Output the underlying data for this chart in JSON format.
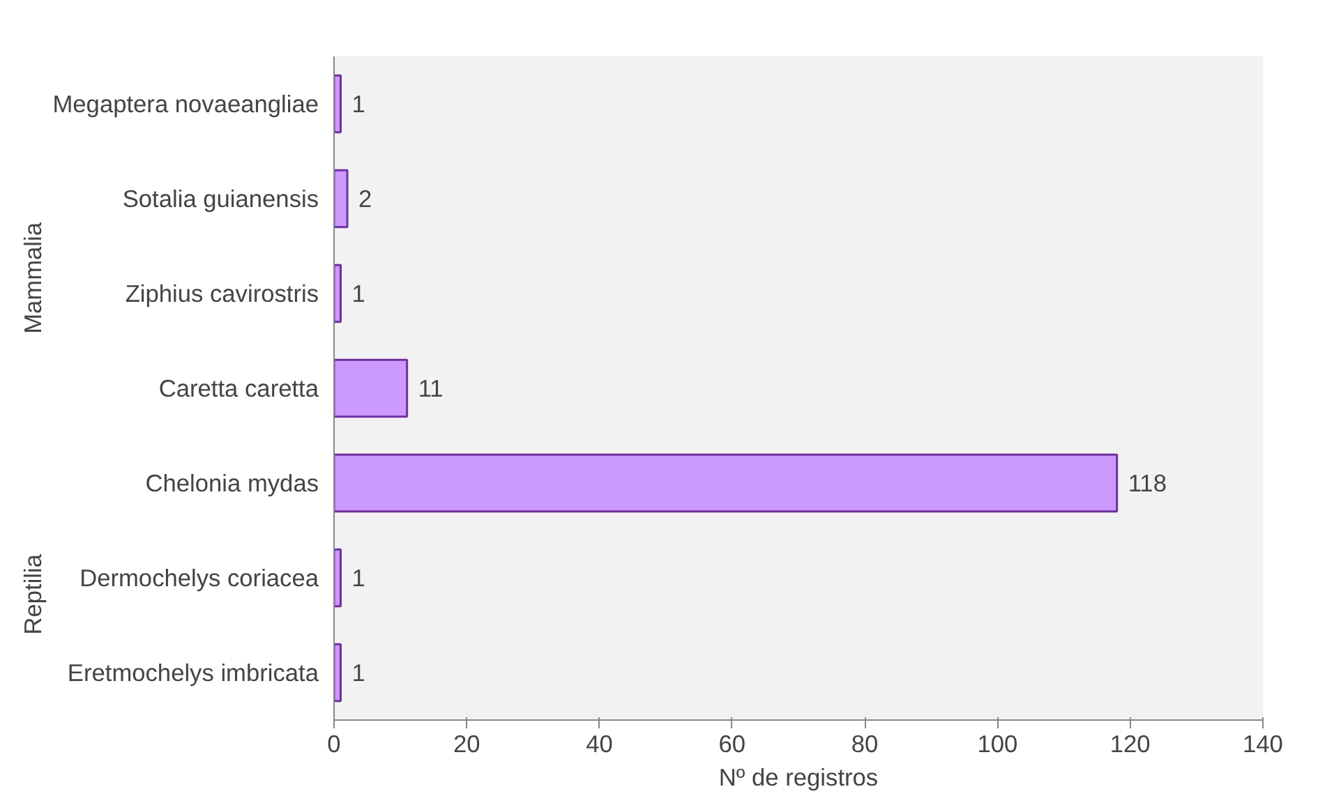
{
  "chart_data": {
    "type": "bar",
    "orientation": "horizontal",
    "xlabel": "Nº de registros",
    "categories": [
      "Megaptera novaeangliae",
      "Sotalia guianensis",
      "Ziphius cavirostris",
      "Caretta caretta",
      "Chelonia mydas",
      "Dermochelys coriacea",
      "Eretmochelys imbricata"
    ],
    "values": [
      1,
      2,
      1,
      11,
      118,
      1,
      1
    ],
    "color": "#cc99ff",
    "xlim": [
      0,
      140
    ],
    "xticks": [
      0,
      20,
      40,
      60,
      80,
      100,
      120,
      140
    ],
    "data_labels": true,
    "grid": false,
    "annotations": [
      "Mammalia",
      "Reptilia"
    ]
  }
}
